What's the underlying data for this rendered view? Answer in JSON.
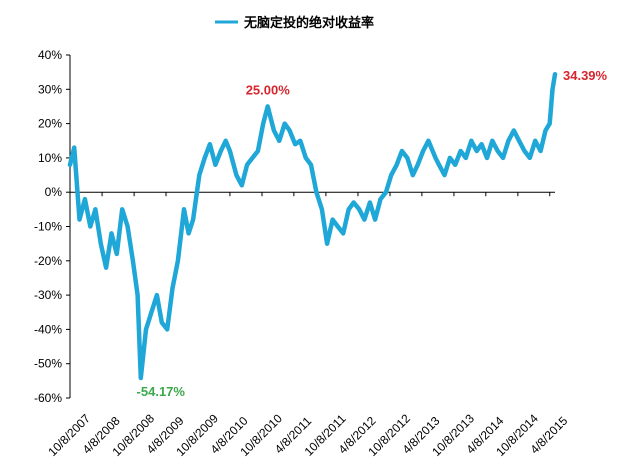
{
  "chart_data": {
    "type": "line",
    "title": "",
    "xlabel": "",
    "ylabel": "",
    "ylim": [
      -60,
      40
    ],
    "yticks": [
      40,
      30,
      20,
      10,
      0,
      -10,
      -20,
      -30,
      -40,
      -50,
      -60
    ],
    "ytick_labels": [
      "40%",
      "30%",
      "20%",
      "10%",
      "0%",
      "-10%",
      "-20%",
      "-30%",
      "-40%",
      "-50%",
      "-60%"
    ],
    "xtick_labels": [
      "10/8/2007",
      "4/8/2008",
      "10/8/2008",
      "4/8/2009",
      "10/8/2009",
      "4/8/2010",
      "10/8/2010",
      "4/8/2011",
      "10/8/2011",
      "4/8/2012",
      "10/8/2012",
      "4/8/2013",
      "10/8/2013",
      "4/8/2014",
      "10/8/2014",
      "4/8/2015"
    ],
    "grid": false,
    "legend_position": "top-center",
    "series": [
      {
        "name": "无脑定投的绝对收益率",
        "color": "#1fa7d8",
        "x": [
          "2007-10-08",
          "2007-11-01",
          "2007-12-01",
          "2008-01-01",
          "2008-02-01",
          "2008-03-01",
          "2008-04-01",
          "2008-05-01",
          "2008-06-01",
          "2008-07-01",
          "2008-08-01",
          "2008-09-01",
          "2008-10-01",
          "2008-10-28",
          "2008-11-15",
          "2008-12-15",
          "2009-01-15",
          "2009-02-15",
          "2009-03-15",
          "2009-04-15",
          "2009-05-15",
          "2009-06-15",
          "2009-07-20",
          "2009-08-15",
          "2009-09-10",
          "2009-10-15",
          "2009-11-15",
          "2009-12-15",
          "2010-01-15",
          "2010-02-15",
          "2010-03-15",
          "2010-04-08",
          "2010-05-15",
          "2010-06-15",
          "2010-07-15",
          "2010-08-15",
          "2010-09-15",
          "2010-10-15",
          "2010-11-10",
          "2010-12-15",
          "2011-01-15",
          "2011-02-15",
          "2011-03-15",
          "2011-04-15",
          "2011-05-15",
          "2011-06-15",
          "2011-07-15",
          "2011-08-15",
          "2011-09-15",
          "2011-10-15",
          "2011-11-15",
          "2011-12-15",
          "2012-01-15",
          "2012-02-15",
          "2012-03-15",
          "2012-04-15",
          "2012-05-15",
          "2012-06-15",
          "2012-07-15",
          "2012-08-15",
          "2012-09-15",
          "2012-10-15",
          "2012-11-15",
          "2012-12-15",
          "2013-01-15",
          "2013-02-15",
          "2013-03-15",
          "2013-04-15",
          "2013-05-15",
          "2013-06-25",
          "2013-07-15",
          "2013-08-15",
          "2013-09-15",
          "2013-10-15",
          "2013-11-15",
          "2013-12-15",
          "2014-01-15",
          "2014-02-15",
          "2014-03-15",
          "2014-04-15",
          "2014-05-15",
          "2014-06-15",
          "2014-07-15",
          "2014-08-15",
          "2014-09-15",
          "2014-10-15",
          "2014-11-15",
          "2014-12-15",
          "2015-01-15",
          "2015-02-15",
          "2015-03-15",
          "2015-04-08",
          "2015-04-24",
          "2015-05-08"
        ],
        "values": [
          8,
          13,
          -8,
          -2,
          -10,
          -5,
          -15,
          -22,
          -12,
          -18,
          -5,
          -10,
          -20,
          -30,
          -54.17,
          -40,
          -35,
          -30,
          -38,
          -40,
          -28,
          -20,
          -5,
          -12,
          -8,
          5,
          10,
          14,
          8,
          12,
          15,
          12,
          5,
          2,
          8,
          10,
          12,
          20,
          25,
          18,
          15,
          20,
          18,
          14,
          15,
          10,
          8,
          0,
          -5,
          -15,
          -8,
          -10,
          -12,
          -5,
          -3,
          -5,
          -8,
          -3,
          -8,
          -2,
          0,
          5,
          8,
          12,
          10,
          5,
          8,
          12,
          15,
          10,
          8,
          5,
          10,
          8,
          12,
          10,
          15,
          12,
          14,
          10,
          15,
          12,
          10,
          15,
          18,
          15,
          12,
          10,
          15,
          12,
          18,
          20,
          30,
          34.39
        ]
      }
    ],
    "annotations": [
      {
        "text": "25.00%",
        "x": "2010-11-10",
        "y": 25,
        "color": "#d7262e"
      },
      {
        "text": "-54.17%",
        "x": "2008-11-15",
        "y": -54.17,
        "color": "#3aa84b"
      },
      {
        "text": "34.39%",
        "x": "2015-05-08",
        "y": 34.39,
        "color": "#d7262e"
      }
    ]
  }
}
